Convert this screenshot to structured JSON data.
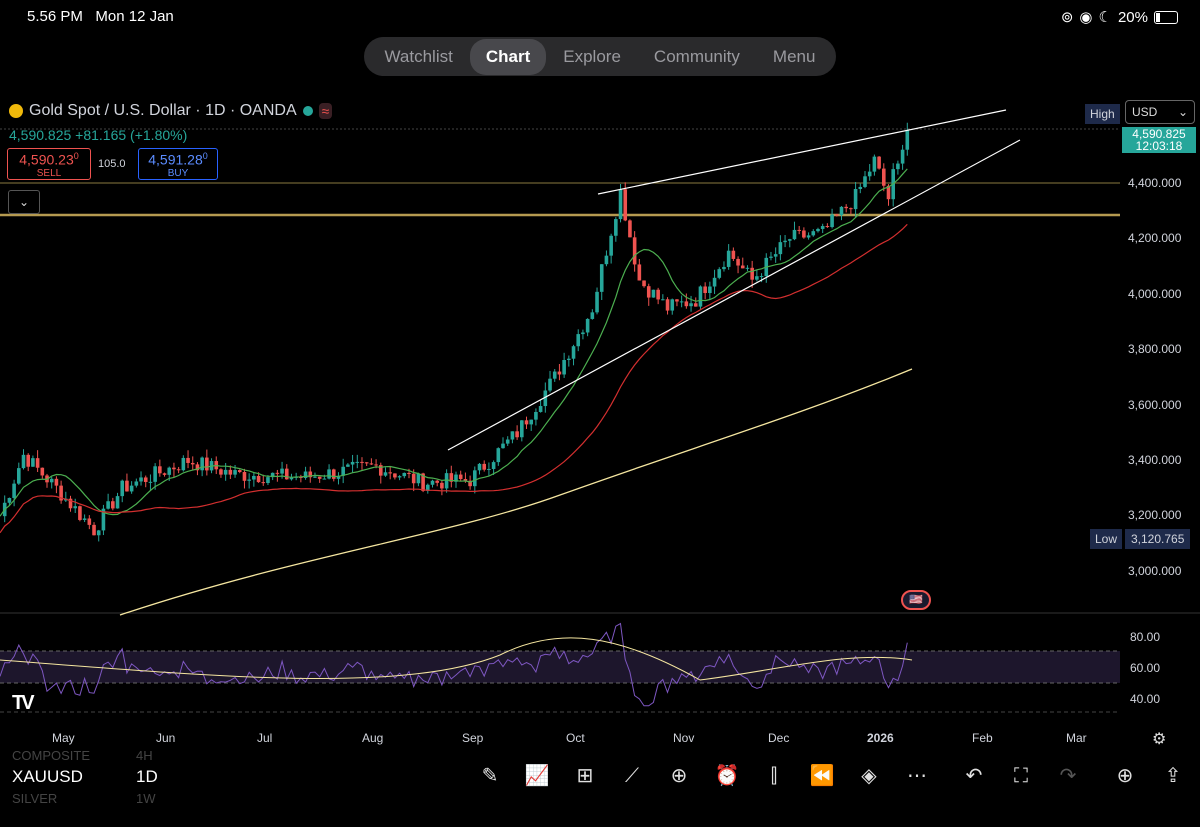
{
  "status_bar": {
    "time": "5.56 PM",
    "date": "Mon 12 Jan",
    "battery": "20%"
  },
  "nav": {
    "tabs": [
      "Watchlist",
      "Chart",
      "Explore",
      "Community",
      "Menu"
    ],
    "active": "Chart"
  },
  "symbol": {
    "title": "Gold Spot / U.S. Dollar · 1D · OANDA",
    "wave": "≈",
    "price_change": "4,590.825 +81.165 (+1.80%)"
  },
  "trade": {
    "sell_price": "4,590.23",
    "sell_sup": "0",
    "sell_label": "SELL",
    "spread": "105.0",
    "buy_price": "4,591.28",
    "buy_sup": "0",
    "buy_label": "BUY"
  },
  "price_axis": {
    "high_label": "High",
    "currency": "USD",
    "current_price": "4,590.825",
    "countdown": "12:03:18",
    "low_label": "Low",
    "low_value": "3,120.765",
    "ticks": [
      "4,400.000",
      "4,200.000",
      "4,000.000",
      "3,800.000",
      "3,600.000",
      "3,400.000",
      "3,200.000",
      "3,000.000"
    ]
  },
  "rsi_axis": {
    "ticks": [
      "80.00",
      "60.00",
      "40.00"
    ]
  },
  "time_axis": {
    "months": [
      "May",
      "Jun",
      "Jul",
      "Aug",
      "Sep",
      "Oct",
      "Nov",
      "Dec",
      "2026",
      "Feb",
      "Mar"
    ]
  },
  "bottom_bar": {
    "symbol": "XAUUSD",
    "timeframe": "1D",
    "ghost_symbol_above": "COMPOSITE",
    "ghost_tf_above": "4H",
    "ghost_symbol_below": "SILVER",
    "ghost_tf_below": "1W"
  },
  "colors": {
    "up": "#26a69a",
    "down": "#ef5350",
    "sma_fast": "#4caf50",
    "sma_mid": "#d32f2f",
    "sma_slow": "#f5e6a0",
    "rsi": "#7e57c2"
  },
  "chart_data": {
    "type": "candlestick",
    "price_range": [
      2880,
      4600
    ],
    "x": [
      "May",
      "Jun",
      "Jul",
      "Aug",
      "Sep",
      "Oct",
      "Nov",
      "Dec",
      "2026",
      "Feb",
      "Mar"
    ],
    "close_approx": [
      3300,
      3350,
      3330,
      3380,
      3550,
      4000,
      4050,
      4200,
      4350,
      4590
    ],
    "moving_averages": [
      "fast",
      "mid",
      "slow"
    ],
    "rsi_range": [
      30,
      90
    ]
  }
}
